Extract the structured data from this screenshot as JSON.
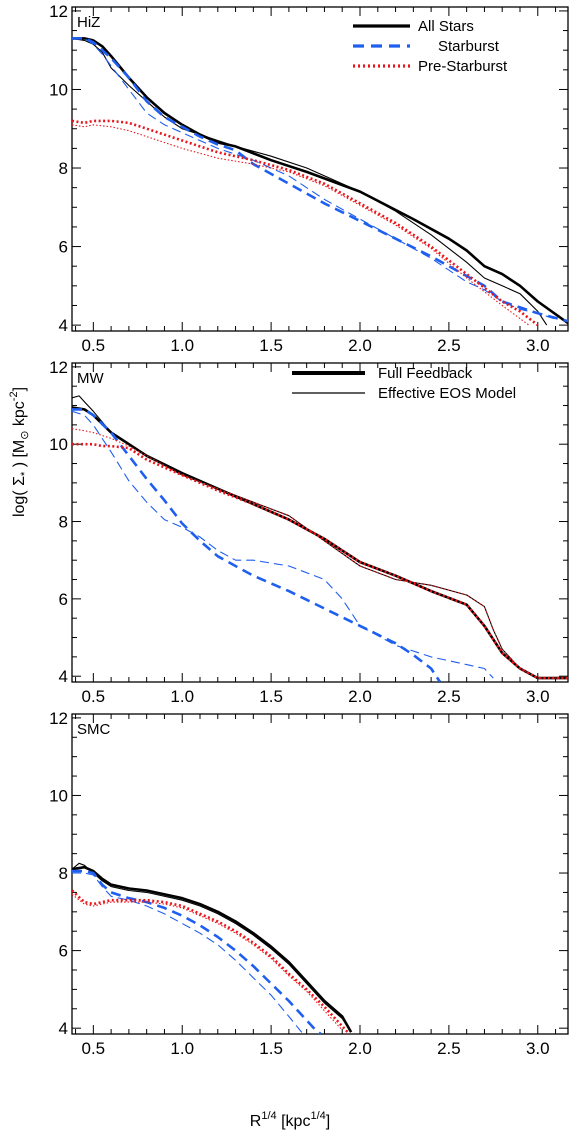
{
  "chart_data": {
    "type": "line",
    "xlabel": "R^{1/4}  [kpc^{1/4}]",
    "ylabel": "log( Σ* )  [M⊙ kpc^-2]",
    "xlim": [
      0.38,
      3.17
    ],
    "ylim": [
      3.85,
      12.1
    ],
    "xticks": [
      "0.5",
      "1.0",
      "1.5",
      "2.0",
      "2.5",
      "3.0"
    ],
    "yticks": [
      "4",
      "6",
      "8",
      "10",
      "12"
    ],
    "component_legend": {
      "entries": [
        "All Stars",
        "Starburst",
        "Pre-Starburst"
      ],
      "placement": "top-right (HiZ panel)"
    },
    "model_legend": {
      "entries": [
        "Full Feedback",
        "Effective EOS Model"
      ],
      "placement": "top-right (MW panel)"
    },
    "colors": {
      "all": "#000000",
      "starburst": "#1f5ff0",
      "pre": "#e8161b"
    },
    "panels": [
      {
        "label": "HiZ",
        "series": [
          {
            "name": "All Stars",
            "model": "Full Feedback",
            "x": [
              0.38,
              0.45,
              0.5,
              0.55,
              0.6,
              0.7,
              0.8,
              0.9,
              1.0,
              1.1,
              1.2,
              1.3,
              1.5,
              1.7,
              2.0,
              2.3,
              2.5,
              2.6,
              2.7,
              2.8,
              2.9,
              3.0,
              3.17
            ],
            "y": [
              11.3,
              11.3,
              11.25,
              11.1,
              10.85,
              10.3,
              9.8,
              9.4,
              9.1,
              8.85,
              8.65,
              8.55,
              8.2,
              7.9,
              7.4,
              6.7,
              6.2,
              5.9,
              5.5,
              5.3,
              5.0,
              4.6,
              4.05
            ]
          },
          {
            "name": "All Stars",
            "model": "Effective EOS Model",
            "x": [
              0.38,
              0.45,
              0.5,
              0.55,
              0.6,
              0.7,
              0.8,
              0.9,
              1.0,
              1.2,
              1.3,
              1.5,
              1.7,
              2.0,
              2.2,
              2.4,
              2.6,
              2.7,
              2.8,
              2.9,
              3.0,
              3.05
            ],
            "y": [
              11.3,
              11.25,
              11.15,
              10.95,
              10.55,
              10.1,
              9.7,
              9.3,
              9.0,
              8.7,
              8.55,
              8.3,
              8.0,
              7.4,
              6.9,
              6.3,
              5.6,
              5.2,
              5.0,
              4.8,
              4.35,
              4.0
            ]
          },
          {
            "name": "Starburst",
            "model": "Full Feedback",
            "x": [
              0.38,
              0.45,
              0.5,
              0.55,
              0.6,
              0.7,
              0.8,
              0.9,
              1.0,
              1.1,
              1.2,
              1.3,
              1.4,
              1.6,
              1.8,
              2.0,
              2.2,
              2.4,
              2.6,
              2.7,
              2.8,
              2.9,
              3.0,
              3.17
            ],
            "y": [
              11.3,
              11.3,
              11.2,
              11.0,
              10.8,
              10.3,
              9.7,
              9.3,
              9.05,
              8.8,
              8.6,
              8.45,
              8.1,
              7.6,
              7.1,
              6.65,
              6.2,
              5.75,
              5.25,
              5.0,
              4.6,
              4.45,
              4.3,
              4.1
            ]
          },
          {
            "name": "Starburst",
            "model": "Effective EOS Model",
            "x": [
              0.38,
              0.45,
              0.5,
              0.55,
              0.6,
              0.7,
              0.8,
              0.9,
              1.0,
              1.2,
              1.4,
              1.6,
              1.8,
              2.0,
              2.2,
              2.4,
              2.6,
              2.7,
              2.8,
              2.9,
              3.0,
              3.1
            ],
            "y": [
              11.3,
              11.3,
              11.15,
              10.9,
              10.6,
              10.0,
              9.4,
              9.1,
              8.9,
              8.5,
              8.2,
              7.8,
              7.2,
              6.7,
              6.2,
              5.7,
              5.1,
              4.9,
              4.6,
              4.4,
              4.3,
              4.15
            ]
          },
          {
            "name": "Pre-Starburst",
            "model": "Full Feedback",
            "x": [
              0.38,
              0.45,
              0.5,
              0.6,
              0.7,
              0.8,
              0.9,
              1.0,
              1.2,
              1.4,
              1.6,
              1.8,
              2.0,
              2.2,
              2.4,
              2.6,
              2.8,
              2.9,
              3.0
            ],
            "y": [
              9.2,
              9.15,
              9.2,
              9.2,
              9.15,
              9.0,
              8.85,
              8.7,
              8.4,
              8.2,
              7.95,
              7.6,
              7.1,
              6.6,
              6.0,
              5.3,
              4.6,
              4.35,
              4.0
            ]
          },
          {
            "name": "Pre-Starburst",
            "model": "Effective EOS Model",
            "x": [
              0.38,
              0.45,
              0.5,
              0.6,
              0.7,
              0.8,
              0.9,
              1.0,
              1.2,
              1.4,
              1.6,
              1.8,
              2.0,
              2.2,
              2.4,
              2.6,
              2.8,
              2.95
            ],
            "y": [
              9.1,
              9.05,
              9.1,
              9.05,
              8.95,
              8.8,
              8.65,
              8.5,
              8.25,
              8.1,
              7.9,
              7.55,
              7.05,
              6.55,
              5.95,
              5.2,
              4.5,
              4.0
            ]
          }
        ]
      },
      {
        "label": "MW",
        "series": [
          {
            "name": "All Stars",
            "model": "Full Feedback",
            "x": [
              0.38,
              0.45,
              0.5,
              0.6,
              0.8,
              1.0,
              1.2,
              1.4,
              1.6,
              1.8,
              2.0,
              2.2,
              2.4,
              2.6,
              2.7,
              2.8,
              2.9,
              3.0,
              3.1,
              3.17
            ],
            "y": [
              10.95,
              10.9,
              10.75,
              10.3,
              9.7,
              9.25,
              8.85,
              8.45,
              8.05,
              7.55,
              6.95,
              6.6,
              6.2,
              5.85,
              5.3,
              4.6,
              4.2,
              3.95,
              3.95,
              3.95
            ]
          },
          {
            "name": "All Stars",
            "model": "Effective EOS Model",
            "x": [
              0.38,
              0.42,
              0.45,
              0.5,
              0.6,
              0.8,
              1.0,
              1.2,
              1.4,
              1.6,
              1.8,
              2.0,
              2.2,
              2.4,
              2.6,
              2.7,
              2.75,
              2.8,
              2.9,
              3.0,
              3.1,
              3.17
            ],
            "y": [
              11.2,
              11.25,
              11.1,
              10.85,
              10.3,
              9.7,
              9.2,
              8.85,
              8.5,
              8.15,
              7.5,
              6.85,
              6.5,
              6.35,
              6.1,
              5.8,
              5.2,
              4.7,
              4.2,
              3.95,
              3.95,
              3.95
            ]
          },
          {
            "name": "Starburst",
            "model": "Full Feedback",
            "x": [
              0.38,
              0.45,
              0.5,
              0.6,
              0.7,
              0.8,
              0.9,
              1.0,
              1.1,
              1.2,
              1.4,
              1.6,
              1.8,
              2.0,
              2.2,
              2.3,
              2.4,
              2.45
            ],
            "y": [
              10.9,
              10.9,
              10.75,
              10.3,
              9.7,
              9.1,
              8.55,
              7.95,
              7.5,
              7.1,
              6.6,
              6.2,
              5.75,
              5.3,
              4.85,
              4.55,
              4.2,
              3.85
            ]
          },
          {
            "name": "Starburst",
            "model": "Effective EOS Model",
            "x": [
              0.38,
              0.45,
              0.5,
              0.6,
              0.7,
              0.8,
              0.9,
              1.0,
              1.1,
              1.2,
              1.3,
              1.4,
              1.6,
              1.8,
              1.9,
              2.0,
              2.2,
              2.4,
              2.6,
              2.7,
              2.75
            ],
            "y": [
              10.85,
              10.75,
              10.5,
              9.8,
              9.05,
              8.5,
              8.05,
              7.85,
              7.6,
              7.25,
              7.0,
              7.0,
              6.85,
              6.5,
              6.0,
              5.3,
              4.8,
              4.5,
              4.3,
              4.2,
              3.95
            ]
          },
          {
            "name": "Pre-Starburst",
            "model": "Full Feedback",
            "x": [
              0.38,
              0.45,
              0.5,
              0.55,
              0.6,
              0.7,
              0.8,
              1.0,
              1.2,
              1.4,
              1.6,
              1.8,
              2.0,
              2.2,
              2.4,
              2.6,
              2.7,
              2.8,
              2.9,
              3.0,
              3.1,
              3.17
            ],
            "y": [
              10.0,
              10.0,
              10.0,
              9.95,
              9.95,
              9.9,
              9.6,
              9.2,
              8.8,
              8.45,
              8.05,
              7.55,
              6.95,
              6.6,
              6.2,
              5.85,
              5.3,
              4.6,
              4.2,
              3.95,
              3.95,
              3.95
            ]
          },
          {
            "name": "Pre-Starburst",
            "model": "Effective EOS Model",
            "x": [
              0.38,
              0.45,
              0.5,
              0.6,
              0.7,
              0.8,
              1.0,
              1.2,
              1.4,
              1.6,
              1.8,
              2.0,
              2.2,
              2.4,
              2.6,
              2.7,
              2.75,
              2.8,
              2.9,
              3.0,
              3.1,
              3.17
            ],
            "y": [
              10.4,
              10.35,
              10.3,
              10.15,
              9.95,
              9.7,
              9.2,
              8.85,
              8.5,
              8.15,
              7.5,
              6.85,
              6.5,
              6.35,
              6.1,
              5.8,
              5.2,
              4.7,
              4.2,
              3.95,
              3.95,
              3.95
            ]
          }
        ]
      },
      {
        "label": "SMC",
        "series": [
          {
            "name": "All Stars",
            "model": "Full Feedback",
            "x": [
              0.38,
              0.45,
              0.5,
              0.55,
              0.6,
              0.7,
              0.8,
              1.0,
              1.1,
              1.2,
              1.3,
              1.4,
              1.5,
              1.6,
              1.7,
              1.8,
              1.9,
              1.95
            ],
            "y": [
              8.1,
              8.15,
              8.05,
              7.85,
              7.7,
              7.6,
              7.55,
              7.35,
              7.2,
              7.0,
              6.75,
              6.45,
              6.1,
              5.7,
              5.2,
              4.7,
              4.3,
              3.9
            ]
          },
          {
            "name": "All Stars",
            "model": "Effective EOS Model",
            "x": [
              0.38,
              0.42,
              0.45,
              0.5,
              0.55,
              0.6,
              0.7,
              0.8,
              1.0,
              1.1,
              1.2,
              1.3,
              1.4,
              1.5,
              1.6,
              1.7,
              1.8,
              1.9,
              1.95
            ],
            "y": [
              8.1,
              8.25,
              8.2,
              8.0,
              7.8,
              7.65,
              7.55,
              7.5,
              7.3,
              7.15,
              6.95,
              6.7,
              6.4,
              6.05,
              5.65,
              5.15,
              4.65,
              4.25,
              3.9
            ]
          },
          {
            "name": "Starburst",
            "model": "Full Feedback",
            "x": [
              0.38,
              0.45,
              0.5,
              0.55,
              0.6,
              0.7,
              0.8,
              0.9,
              1.0,
              1.1,
              1.2,
              1.3,
              1.4,
              1.5,
              1.6,
              1.7,
              1.75,
              1.78
            ],
            "y": [
              8.05,
              8.05,
              8.0,
              7.7,
              7.5,
              7.35,
              7.25,
              7.1,
              6.9,
              6.65,
              6.35,
              6.0,
              5.6,
              5.15,
              4.7,
              4.2,
              3.95,
              3.85
            ]
          },
          {
            "name": "Starburst",
            "model": "Effective EOS Model",
            "x": [
              0.38,
              0.45,
              0.5,
              0.55,
              0.6,
              0.7,
              0.8,
              0.9,
              1.0,
              1.1,
              1.2,
              1.3,
              1.4,
              1.5,
              1.6,
              1.68
            ],
            "y": [
              8.0,
              8.0,
              7.95,
              7.65,
              7.4,
              7.3,
              7.15,
              6.95,
              6.7,
              6.45,
              6.15,
              5.75,
              5.3,
              4.85,
              4.3,
              3.85
            ]
          },
          {
            "name": "Pre-Starburst",
            "model": "Full Feedback",
            "x": [
              0.38,
              0.45,
              0.5,
              0.55,
              0.6,
              0.7,
              0.8,
              0.9,
              1.0,
              1.1,
              1.2,
              1.3,
              1.4,
              1.5,
              1.6,
              1.7,
              1.8,
              1.9,
              1.93
            ],
            "y": [
              7.55,
              7.25,
              7.2,
              7.25,
              7.3,
              7.3,
              7.3,
              7.25,
              7.15,
              6.95,
              6.75,
              6.5,
              6.2,
              5.85,
              5.4,
              5.0,
              4.55,
              4.05,
              3.9
            ]
          },
          {
            "name": "Pre-Starburst",
            "model": "Effective EOS Model",
            "x": [
              0.38,
              0.45,
              0.5,
              0.55,
              0.6,
              0.7,
              0.8,
              0.9,
              1.0,
              1.1,
              1.2,
              1.3,
              1.4,
              1.5,
              1.6,
              1.7,
              1.8,
              1.9
            ],
            "y": [
              7.45,
              7.2,
              7.15,
              7.2,
              7.25,
              7.25,
              7.25,
              7.2,
              7.1,
              6.9,
              6.7,
              6.45,
              6.15,
              5.8,
              5.35,
              4.95,
              4.45,
              3.95
            ]
          }
        ]
      }
    ]
  }
}
